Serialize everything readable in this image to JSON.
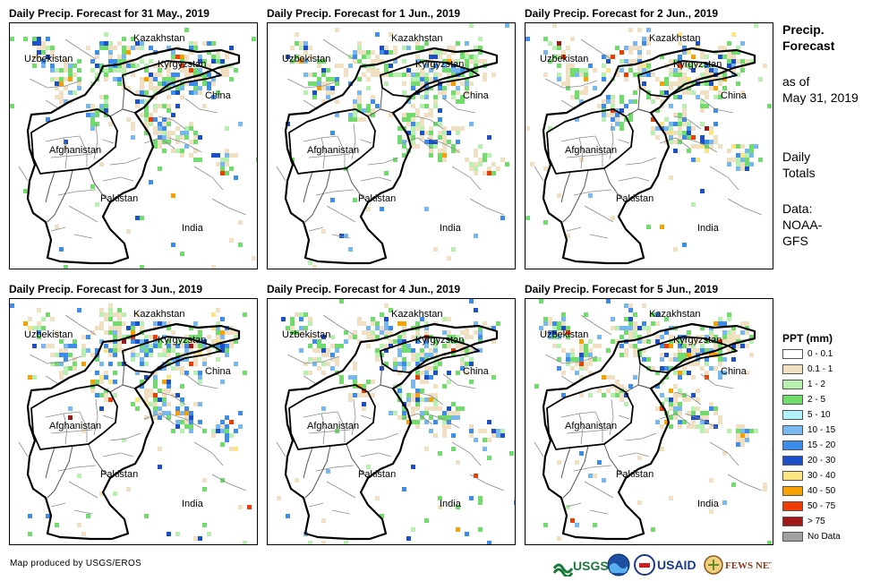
{
  "panels": [
    {
      "title": "Daily Precip. Forecast for 31 May., 2019",
      "precip_level": "moderate"
    },
    {
      "title": "Daily Precip. Forecast for 1 Jun., 2019",
      "precip_level": "moderate"
    },
    {
      "title": "Daily Precip. Forecast for 2 Jun., 2019",
      "precip_level": "heavy"
    },
    {
      "title": "Daily Precip. Forecast for 3 Jun., 2019",
      "precip_level": "heavy"
    },
    {
      "title": "Daily Precip. Forecast for 4 Jun., 2019",
      "precip_level": "moderate"
    },
    {
      "title": "Daily Precip. Forecast for 5 Jun., 2019",
      "precip_level": "moderate"
    }
  ],
  "map_labels": {
    "kazakhstan": "Kazakhstan",
    "uzbekistan": "Uzbekistan",
    "kyrgyzstan": "Kyrgyzstan",
    "china": "China",
    "afghanistan": "Afghanistan",
    "pakistan": "Pakistan",
    "india": "India"
  },
  "sidebar": {
    "title_line1": "Precip.",
    "title_line2": "Forecast",
    "asof_line1": "as of",
    "asof_line2": "May 31, 2019",
    "totals_line1": "Daily",
    "totals_line2": "Totals",
    "data_line1": "Data:",
    "data_line2": "NOAA-",
    "data_line3": "GFS"
  },
  "legend": {
    "title": "PPT (mm)",
    "items": [
      {
        "label": "0 - 0.1",
        "color": "#ffffff"
      },
      {
        "label": "0.1 - 1",
        "color": "#f0dfc0"
      },
      {
        "label": "1 - 2",
        "color": "#b8f0b0"
      },
      {
        "label": "2 - 5",
        "color": "#70dc6c"
      },
      {
        "label": "5 - 10",
        "color": "#b0f0f8"
      },
      {
        "label": "10 - 15",
        "color": "#78b8f0"
      },
      {
        "label": "15 - 20",
        "color": "#3c8cec"
      },
      {
        "label": "20 - 30",
        "color": "#1c50c8"
      },
      {
        "label": "30 - 40",
        "color": "#fce480"
      },
      {
        "label": "40 - 50",
        "color": "#f8a000"
      },
      {
        "label": "50 - 75",
        "color": "#f03c00"
      },
      {
        "label": "> 75",
        "color": "#a01818"
      },
      {
        "label": "No Data",
        "color": "#a0a0a0"
      }
    ]
  },
  "footer": {
    "credit": "Map produced by USGS/EROS",
    "logo_usgs": "USGS",
    "logo_usaid": "USAID",
    "logo_fewsnet": "FEWS NET"
  }
}
